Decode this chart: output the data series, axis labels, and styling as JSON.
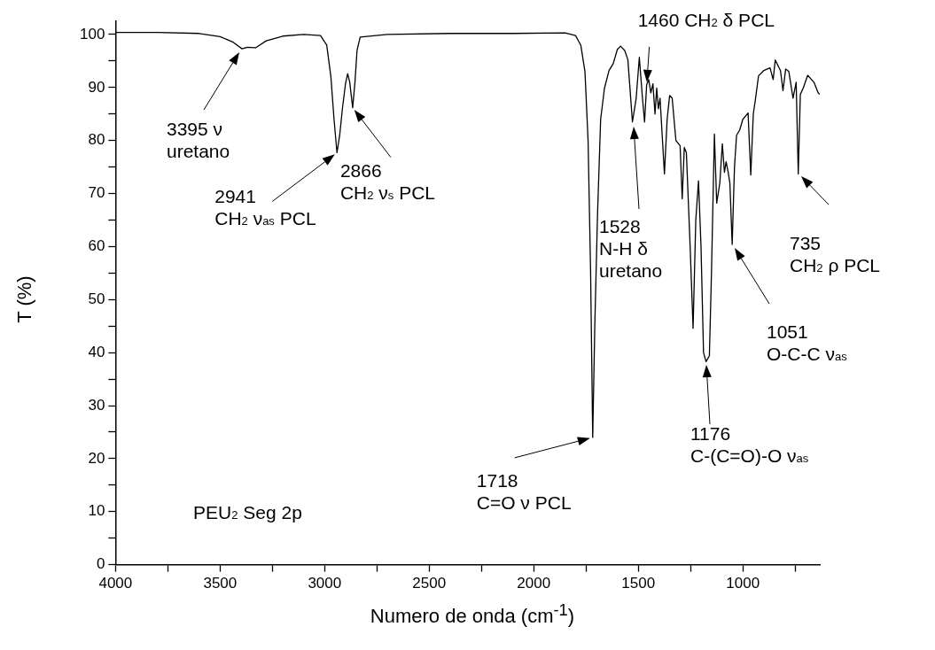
{
  "chart_data": {
    "type": "line",
    "xlabel": "Numero de onda (cm$^{-1}$)",
    "ylabel": "T (%)",
    "xlim": [
      4000,
      632
    ],
    "ylim": [
      0,
      102.5
    ],
    "xticks": [
      4000,
      {
        "value": 3750,
        "label": null
      },
      3500,
      {
        "value": 3250,
        "label": null
      },
      3000,
      {
        "value": 2750,
        "label": null
      },
      2500,
      {
        "value": 2250,
        "label": null
      },
      2000,
      {
        "value": 1750,
        "label": null
      },
      1500,
      {
        "value": 1250,
        "label": null
      },
      1000,
      {
        "value": 750,
        "label": null
      }
    ],
    "yticks": [
      0,
      {
        "value": 5,
        "label": null
      },
      10,
      {
        "value": 15,
        "label": null
      },
      20,
      {
        "value": 25,
        "label": null
      },
      30,
      {
        "value": 35,
        "label": null
      },
      40,
      {
        "value": 45,
        "label": null
      },
      50,
      {
        "value": 55,
        "label": null
      },
      60,
      {
        "value": 65,
        "label": null
      },
      70,
      {
        "value": 75,
        "label": null
      },
      80,
      {
        "value": 85,
        "label": null
      },
      90,
      {
        "value": 95,
        "label": null
      },
      100
    ],
    "grid": false,
    "legend": false,
    "marker": "none",
    "line_style": "solid",
    "series": [
      {
        "color": "#000000",
        "x": [
          4000,
          3800,
          3600,
          3500,
          3440,
          3395,
          3370,
          3330,
          3280,
          3200,
          3100,
          3020,
          2990,
          2970,
          2955,
          2941,
          2928,
          2915,
          2900,
          2890,
          2880,
          2866,
          2855,
          2845,
          2830,
          2700,
          2400,
          2100,
          1850,
          1800,
          1775,
          1755,
          1740,
          1728,
          1718,
          1708,
          1695,
          1680,
          1662,
          1640,
          1620,
          1600,
          1585,
          1565,
          1550,
          1540,
          1528,
          1510,
          1495,
          1480,
          1470,
          1460,
          1450,
          1440,
          1430,
          1420,
          1412,
          1404,
          1396,
          1375,
          1362,
          1350,
          1338,
          1320,
          1300,
          1290,
          1280,
          1270,
          1252,
          1238,
          1225,
          1212,
          1200,
          1188,
          1176,
          1160,
          1150,
          1136,
          1125,
          1110,
          1098,
          1088,
          1080,
          1070,
          1062,
          1051,
          1040,
          1030,
          1015,
          1000,
          975,
          962,
          950,
          940,
          925,
          900,
          870,
          855,
          845,
          820,
          808,
          795,
          780,
          760,
          745,
          735,
          725,
          710,
          690,
          660,
          640,
          632
        ],
        "values": [
          100.4,
          100.4,
          100.2,
          99.6,
          98.6,
          97.3,
          97.6,
          97.5,
          98.8,
          99.7,
          100,
          99.8,
          98,
          92,
          84,
          77.7,
          81,
          86,
          90.8,
          92.6,
          91,
          86.2,
          91,
          97,
          99.5,
          100,
          100.2,
          100.2,
          100.3,
          99.8,
          98,
          93,
          79.9,
          55,
          24,
          45,
          66,
          84,
          89.8,
          93.2,
          94.5,
          97.2,
          97.8,
          97,
          95.3,
          90,
          83.5,
          88,
          95.7,
          88,
          83.5,
          90.5,
          91.5,
          89,
          90.7,
          85,
          89.9,
          86,
          88,
          73.7,
          84,
          88.5,
          88,
          80,
          79,
          69,
          78.7,
          77.7,
          60,
          44.6,
          65,
          72.4,
          60,
          40,
          38.3,
          39.4,
          55,
          81.2,
          68.2,
          72,
          79.4,
          74,
          76,
          74,
          72,
          60.4,
          75,
          81,
          82,
          84,
          85.2,
          73.5,
          85,
          87.7,
          92.2,
          93.2,
          93.7,
          91.5,
          95.2,
          93.2,
          89.4,
          93.5,
          93,
          88,
          91,
          73.7,
          88.7,
          90,
          92.3,
          91,
          89,
          88.7
        ]
      }
    ],
    "annotations": [
      "3395 ν\nuretano",
      {
        "text": "2941\nCH$_{2}$ ν$_{as}$ PCL",
        "x": 2941,
        "y": 77.7
      },
      {
        "text": "2866\nCH$_{2}$ ν$_{s}$ PCL",
        "x": 2866,
        "y": 86.2
      },
      {
        "text": "1718\nC=O ν PCL",
        "x": 1718,
        "y": 24
      },
      "1528\nN-H δ\nuretano",
      {
        "text": "1460 CH$_{2}$ δ PCL",
        "x": 1460,
        "y": 90.5
      },
      "1176\nC-(C=O)-O ν$_{as}$",
      "1051\nO-C-C ν$_{as}$",
      "735\nCH$_{2}$ ρ PCL",
      "PEU$_{2}$ Seg 2p"
    ]
  }
}
